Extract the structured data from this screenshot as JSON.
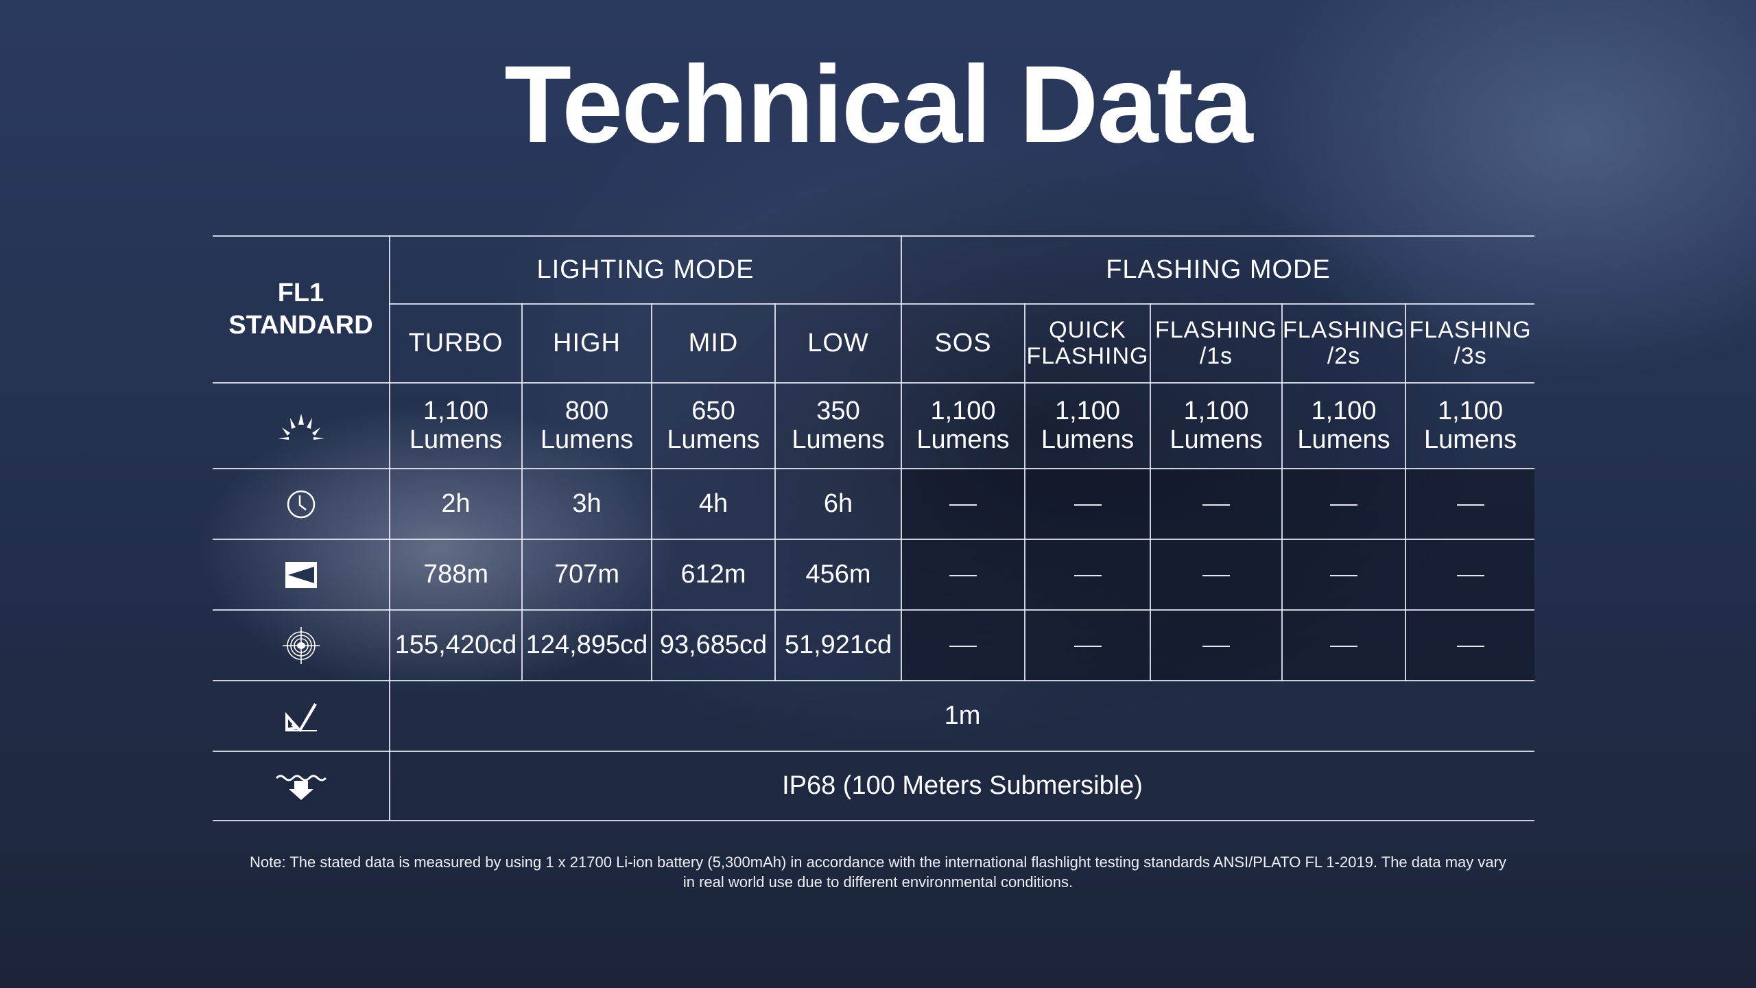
{
  "title": "Technical Data",
  "table": {
    "corner": [
      "FL1",
      "STANDARD"
    ],
    "groups": [
      "LIGHTING MODE",
      "FLASHING MODE"
    ],
    "modes": [
      [
        "TURBO"
      ],
      [
        "HIGH"
      ],
      [
        "MID"
      ],
      [
        "LOW"
      ],
      [
        "SOS"
      ],
      [
        "QUICK",
        "FLASHING"
      ],
      [
        "FLASHING",
        "/1s"
      ],
      [
        "FLASHING",
        "/2s"
      ],
      [
        "FLASHING",
        "/3s"
      ]
    ],
    "rows": [
      {
        "icon": "brightness-icon",
        "cells": [
          [
            "1,100",
            "Lumens"
          ],
          [
            "800",
            "Lumens"
          ],
          [
            "650",
            "Lumens"
          ],
          [
            "350",
            "Lumens"
          ],
          [
            "1,100",
            "Lumens"
          ],
          [
            "1,100",
            "Lumens"
          ],
          [
            "1,100",
            "Lumens"
          ],
          [
            "1,100",
            "Lumens"
          ],
          [
            "1,100",
            "Lumens"
          ]
        ]
      },
      {
        "icon": "runtime-clock-icon",
        "cells": [
          "2h",
          "3h",
          "4h",
          "6h",
          "—",
          "—",
          "—",
          "—",
          "—"
        ]
      },
      {
        "icon": "beam-distance-icon",
        "cells": [
          "788m",
          "707m",
          "612m",
          "456m",
          "—",
          "—",
          "—",
          "—",
          "—"
        ]
      },
      {
        "icon": "intensity-target-icon",
        "cells": [
          "155,420cd",
          "124,895cd",
          "93,685cd",
          "51,921cd",
          "—",
          "—",
          "—",
          "—",
          "—"
        ]
      }
    ],
    "impact": {
      "icon": "impact-resistance-icon",
      "value": "1m"
    },
    "waterproof": {
      "icon": "waterproof-icon",
      "value": "IP68 (100 Meters Submersible)"
    }
  },
  "note": "Note: The stated data is measured by using 1 x 21700 Li-ion battery (5,300mAh) in accordance with the international flashlight testing standards ANSI/PLATO FL 1-2019. The data may vary in real world use due to different environmental conditions."
}
